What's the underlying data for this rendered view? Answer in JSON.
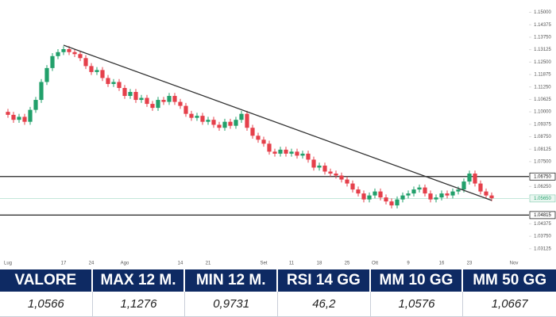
{
  "chart_data": {
    "type": "candlestick",
    "up_color": "#22a06b",
    "down_color": "#e5404b",
    "categories": [
      "Lug",
      null,
      null,
      null,
      null,
      null,
      null,
      null,
      null,
      null,
      "17",
      null,
      null,
      null,
      null,
      "24",
      null,
      null,
      null,
      null,
      null,
      "Ago",
      null,
      null,
      null,
      null,
      null,
      null,
      null,
      null,
      null,
      "14",
      null,
      null,
      null,
      null,
      "21",
      null,
      null,
      null,
      null,
      null,
      null,
      null,
      null,
      null,
      "Set",
      null,
      null,
      null,
      null,
      "11",
      null,
      null,
      null,
      null,
      "18",
      null,
      null,
      null,
      null,
      "25",
      null,
      null,
      null,
      null,
      "Ott",
      null,
      null,
      null,
      null,
      null,
      "9",
      null,
      null,
      null,
      null,
      null,
      "16",
      null,
      null,
      null,
      null,
      "23",
      null,
      null,
      null,
      null,
      null,
      null,
      null,
      "Nov"
    ],
    "open": [
      1.1,
      1.0985,
      1.096,
      1.0975,
      1.095,
      1.101,
      1.106,
      1.115,
      1.122,
      1.128,
      1.13,
      1.1315,
      1.13,
      1.129,
      1.127,
      1.123,
      1.12,
      1.121,
      1.117,
      1.114,
      1.115,
      1.112,
      1.108,
      1.11,
      1.106,
      1.107,
      1.104,
      1.102,
      1.106,
      1.105,
      1.108,
      1.105,
      1.103,
      1.099,
      1.097,
      1.098,
      1.095,
      1.096,
      1.0935,
      1.092,
      1.095,
      1.093,
      1.096,
      1.099,
      1.092,
      1.088,
      1.086,
      1.084,
      1.08,
      1.079,
      1.081,
      1.079,
      1.08,
      1.078,
      1.079,
      1.076,
      1.072,
      1.073,
      1.07,
      1.069,
      1.068,
      1.066,
      1.064,
      1.061,
      1.059,
      1.056,
      1.058,
      1.06,
      1.057,
      1.055,
      1.053,
      1.056,
      1.058,
      1.059,
      1.061,
      1.062,
      1.059,
      1.056,
      1.057,
      1.059,
      1.058,
      1.06,
      1.061,
      1.065,
      1.069,
      1.064,
      1.06,
      1.058,
      null,
      null,
      null,
      null
    ],
    "high": [
      1.1015,
      1.1,
      1.099,
      1.099,
      1.1025,
      1.1075,
      1.1165,
      1.1235,
      1.1295,
      1.1315,
      1.133,
      1.133,
      1.1315,
      1.1305,
      1.1285,
      1.1245,
      1.1225,
      1.1225,
      1.1185,
      1.1165,
      1.1165,
      1.1135,
      1.1115,
      1.1115,
      1.1085,
      1.1085,
      1.1055,
      1.1075,
      1.1075,
      1.1095,
      1.1095,
      1.1065,
      1.1045,
      1.1005,
      1.0995,
      1.0995,
      1.0975,
      1.0975,
      1.095,
      1.0965,
      1.0965,
      1.0975,
      1.1005,
      1.1005,
      1.0935,
      1.0895,
      1.0875,
      1.0855,
      1.0815,
      1.0825,
      1.0825,
      1.0815,
      1.0815,
      1.0805,
      1.0805,
      1.0775,
      1.0745,
      1.0745,
      1.0715,
      1.0705,
      1.0695,
      1.0675,
      1.0655,
      1.0625,
      1.0605,
      1.0595,
      1.0615,
      1.0615,
      1.0585,
      1.0565,
      1.0575,
      1.0595,
      1.0605,
      1.0625,
      1.0635,
      1.0635,
      1.0605,
      1.0585,
      1.0605,
      1.0605,
      1.0615,
      1.0625,
      1.0665,
      1.0705,
      1.0705,
      1.0655,
      1.0615,
      1.0595,
      null,
      null,
      null,
      null
    ],
    "low": [
      1.097,
      1.0945,
      1.0945,
      1.0935,
      1.0935,
      1.0995,
      1.1045,
      1.1135,
      1.1205,
      1.1265,
      1.1285,
      1.1285,
      1.1275,
      1.1255,
      1.1215,
      1.1185,
      1.1185,
      1.1155,
      1.1125,
      1.1125,
      1.1105,
      1.1065,
      1.1065,
      1.1045,
      1.1045,
      1.1025,
      1.1005,
      1.1005,
      1.1035,
      1.1035,
      1.1035,
      1.1015,
      1.0975,
      1.0955,
      1.0955,
      1.0935,
      1.0935,
      1.092,
      1.0905,
      1.0905,
      1.0915,
      1.0915,
      1.0945,
      1.0905,
      1.0865,
      1.0845,
      1.0825,
      1.0785,
      1.0775,
      1.0775,
      1.0775,
      1.0775,
      1.0765,
      1.0765,
      1.0745,
      1.0705,
      1.0705,
      1.0685,
      1.0675,
      1.0665,
      1.0645,
      1.0625,
      1.0595,
      1.0575,
      1.0545,
      1.0545,
      1.0565,
      1.0555,
      1.0535,
      1.0515,
      1.0515,
      1.0545,
      1.0565,
      1.0575,
      1.0595,
      1.0575,
      1.0545,
      1.0545,
      1.0555,
      1.0565,
      1.0565,
      1.0585,
      1.0595,
      1.0635,
      1.0625,
      1.0585,
      1.0565,
      1.0551,
      null,
      null,
      null,
      null
    ],
    "close": [
      1.0985,
      1.096,
      1.0975,
      1.095,
      1.101,
      1.106,
      1.115,
      1.122,
      1.128,
      1.13,
      1.1315,
      1.13,
      1.129,
      1.127,
      1.123,
      1.12,
      1.121,
      1.117,
      1.114,
      1.115,
      1.112,
      1.108,
      1.11,
      1.106,
      1.107,
      1.104,
      1.102,
      1.106,
      1.105,
      1.108,
      1.105,
      1.103,
      1.099,
      1.097,
      1.098,
      1.095,
      1.096,
      1.0935,
      1.092,
      1.095,
      1.093,
      1.096,
      1.099,
      1.092,
      1.088,
      1.086,
      1.084,
      1.08,
      1.079,
      1.081,
      1.079,
      1.08,
      1.078,
      1.079,
      1.076,
      1.072,
      1.073,
      1.07,
      1.069,
      1.068,
      1.066,
      1.064,
      1.061,
      1.059,
      1.056,
      1.058,
      1.06,
      1.057,
      1.055,
      1.053,
      1.056,
      1.058,
      1.059,
      1.061,
      1.062,
      1.059,
      1.056,
      1.057,
      1.059,
      1.058,
      1.06,
      1.061,
      1.065,
      1.069,
      1.064,
      1.06,
      1.058,
      1.0566,
      null,
      null,
      null,
      null
    ],
    "ylim": [
      1.028,
      1.153
    ],
    "yticks": [
      {
        "value": 1.15,
        "label": "1.15000"
      },
      {
        "value": 1.14375,
        "label": "1.14375"
      },
      {
        "value": 1.1375,
        "label": "1.13750"
      },
      {
        "value": 1.13125,
        "label": "1.13125"
      },
      {
        "value": 1.125,
        "label": "1.12500"
      },
      {
        "value": 1.11875,
        "label": "1.11875"
      },
      {
        "value": 1.1125,
        "label": "1.11250"
      },
      {
        "value": 1.10625,
        "label": "1.10625"
      },
      {
        "value": 1.1,
        "label": "1.10000"
      },
      {
        "value": 1.09375,
        "label": "1.09375"
      },
      {
        "value": 1.0875,
        "label": "1.08750"
      },
      {
        "value": 1.08125,
        "label": "1.08125"
      },
      {
        "value": 1.075,
        "label": "1.07500"
      },
      {
        "value": 1.0625,
        "label": "1.06250"
      },
      {
        "value": 1.04375,
        "label": "1.04375"
      },
      {
        "value": 1.0375,
        "label": "1.03750"
      },
      {
        "value": 1.03125,
        "label": "1.03125"
      }
    ],
    "levels": [
      {
        "value": 1.0675,
        "label": "1.06750"
      },
      {
        "value": 1.04815,
        "label": "1.04815"
      }
    ],
    "last_price": {
      "value": 1.0565,
      "label": "1.05650"
    },
    "trendline": {
      "x": [
        10,
        87
      ],
      "y": [
        1.1335,
        1.0555
      ]
    }
  },
  "table": {
    "header": [
      "VALORE",
      "MAX 12 M.",
      "MIN 12 M.",
      "RSI 14 GG",
      "MM 10 GG",
      "MM 50 GG"
    ],
    "rows": [
      [
        "1,0566",
        "1,1276",
        "0,9731",
        "46,2",
        "1,0576",
        "1,0667"
      ]
    ]
  }
}
